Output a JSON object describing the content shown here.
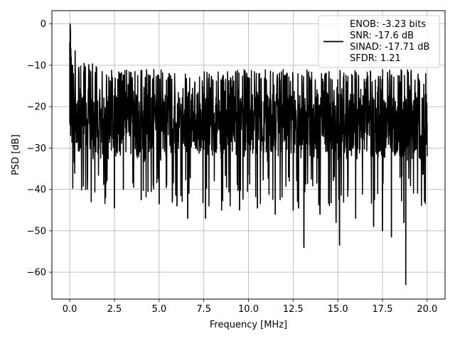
{
  "chart_data": {
    "type": "line",
    "xlabel": "Frequency [MHz]",
    "ylabel": "PSD [dB]",
    "xlim": [
      -1.0,
      21.0
    ],
    "ylim": [
      -66.5,
      3.2
    ],
    "grid": true,
    "legend": "top-right",
    "x_ticks": [
      0.0,
      2.5,
      5.0,
      7.5,
      10.0,
      12.5,
      15.0,
      17.5,
      20.0
    ],
    "x_tick_labels": [
      "0.0",
      "2.5",
      "5.0",
      "7.5",
      "10.0",
      "12.5",
      "15.0",
      "17.5",
      "20.0"
    ],
    "y_ticks": [
      0,
      -10,
      -20,
      -30,
      -40,
      -50,
      -60
    ],
    "y_tick_labels": [
      "0",
      "−10",
      "−20",
      "−30",
      "−40",
      "−50",
      "−60"
    ],
    "series": [
      {
        "color": "#000000",
        "x": [
          0.0,
          0.02,
          0.04,
          0.06,
          0.08,
          0.1,
          0.15,
          0.2,
          0.25,
          0.3,
          0.4,
          0.5,
          0.6,
          0.8,
          1.0,
          1.1,
          1.2,
          1.5,
          2.0,
          2.5,
          2.8,
          3.0,
          3.5,
          4.0,
          4.5,
          5.0,
          5.5,
          6.0,
          6.6,
          7.0,
          7.6,
          8.0,
          8.5,
          9.0,
          9.5,
          10.0,
          10.5,
          11.0,
          11.5,
          12.0,
          12.5,
          12.8,
          13.0,
          13.1,
          13.5,
          14.0,
          14.5,
          14.9,
          15.0,
          15.1,
          15.5,
          16.0,
          16.5,
          17.0,
          17.5,
          17.8,
          18.0,
          18.5,
          18.7,
          18.8,
          19.0,
          19.5,
          20.0
        ],
        "y": [
          -4.5,
          0.0,
          -1.5,
          -6.0,
          -8.0,
          -24.5,
          -10.0,
          -12.0,
          -33.5,
          -6.5,
          -28.0,
          -10.5,
          -30.0,
          -9.5,
          -37.5,
          -11.0,
          -43.0,
          -10.5,
          -42.0,
          -44.5,
          -12.0,
          -40.0,
          -13.0,
          -42.5,
          -12.5,
          -43.5,
          -13.0,
          -44.0,
          -47.0,
          -14.0,
          -47.0,
          -13.5,
          -45.0,
          -13.0,
          -45.0,
          -14.0,
          -44.5,
          -13.5,
          -46.0,
          -12.5,
          -45.0,
          -44.5,
          -14.0,
          -54.0,
          -13.5,
          -46.0,
          -13.0,
          -48.0,
          -13.5,
          -53.5,
          -14.0,
          -47.0,
          -14.0,
          -49.0,
          -50.0,
          -13.5,
          -51.5,
          -14.0,
          -48.0,
          -63.0,
          -15.0,
          -14.5,
          -32.0
        ]
      }
    ],
    "legend_lines": [
      "ENOB: -3.23 bits",
      "SNR: -17.6 dB",
      "SINAD: -17.71 dB",
      "SFDR: 1.21"
    ]
  }
}
